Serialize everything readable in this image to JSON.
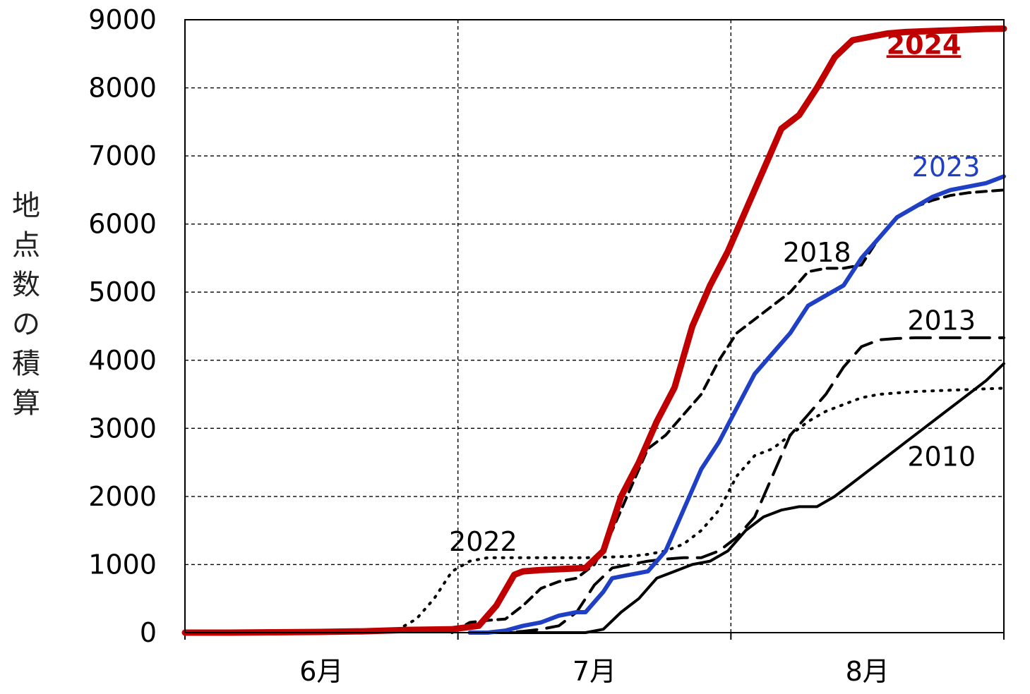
{
  "chart_data": {
    "type": "line",
    "xlabel": "",
    "ylabel": "地点数の積算",
    "ylim": [
      0,
      9000
    ],
    "yticks": [
      "0",
      "1000",
      "2000",
      "3000",
      "4000",
      "5000",
      "6000",
      "7000",
      "8000",
      "9000"
    ],
    "xlim": [
      0,
      92
    ],
    "x_categories": [
      "6月",
      "7月",
      "8月"
    ],
    "grid": true,
    "series": [
      {
        "name": "2024",
        "color": "#c00000",
        "style": "solid-thick",
        "x": [
          0,
          5,
          10,
          15,
          20,
          25,
          30,
          33,
          35,
          37,
          38,
          40,
          45,
          47,
          49,
          51,
          53,
          55,
          57,
          59,
          61,
          63,
          65,
          67,
          69,
          71,
          73,
          75,
          77,
          79,
          81,
          83,
          85,
          86,
          87,
          88,
          89,
          90,
          92
        ],
        "values": [
          0,
          0,
          5,
          10,
          20,
          40,
          50,
          100,
          400,
          850,
          900,
          920,
          950,
          1200,
          2000,
          2500,
          3100,
          3600,
          4500,
          5100,
          5600,
          6200,
          6800,
          7400,
          7600,
          8000,
          8450,
          8700,
          8750,
          8800,
          8820,
          8830,
          8840,
          8845,
          8850,
          8855,
          8860,
          8865,
          8870
        ]
      },
      {
        "name": "2023",
        "color": "#1f3fc4",
        "style": "solid",
        "x": [
          32,
          34,
          36,
          38,
          40,
          42,
          44,
          45,
          47,
          48,
          50,
          52,
          54,
          56,
          58,
          60,
          62,
          64,
          66,
          68,
          70,
          72,
          74,
          76,
          78,
          80,
          82,
          84,
          86,
          88,
          90,
          92
        ],
        "values": [
          0,
          0,
          30,
          100,
          150,
          250,
          300,
          300,
          600,
          800,
          850,
          900,
          1200,
          1800,
          2400,
          2800,
          3300,
          3800,
          4100,
          4400,
          4800,
          4950,
          5100,
          5500,
          5800,
          6100,
          6250,
          6400,
          6500,
          6550,
          6600,
          6700
        ]
      },
      {
        "name": "2018",
        "color": "#000000",
        "style": "dashed",
        "x": [
          30,
          32,
          34,
          36,
          38,
          40,
          42,
          44,
          46,
          48,
          50,
          52,
          54,
          56,
          58,
          60,
          62,
          64,
          66,
          68,
          70,
          72,
          74,
          76,
          78,
          80,
          82,
          84,
          86,
          88,
          90,
          92
        ],
        "values": [
          0,
          150,
          180,
          200,
          400,
          650,
          750,
          800,
          1000,
          1500,
          2100,
          2700,
          2900,
          3200,
          3500,
          4000,
          4400,
          4600,
          4800,
          5000,
          5300,
          5350,
          5350,
          5400,
          5800,
          6100,
          6250,
          6350,
          6420,
          6460,
          6480,
          6500
        ]
      },
      {
        "name": "2013",
        "color": "#000000",
        "style": "long-dashed",
        "x": [
          34,
          36,
          38,
          40,
          42,
          44,
          46,
          48,
          50,
          52,
          54,
          56,
          58,
          60,
          62,
          64,
          66,
          68,
          70,
          72,
          74,
          76,
          78,
          80,
          82,
          84,
          86,
          88,
          90,
          92
        ],
        "values": [
          0,
          0,
          20,
          50,
          100,
          300,
          700,
          950,
          1000,
          1050,
          1080,
          1100,
          1100,
          1200,
          1400,
          1700,
          2300,
          2900,
          3200,
          3500,
          3900,
          4200,
          4300,
          4320,
          4330,
          4330,
          4330,
          4330,
          4330,
          4330
        ]
      },
      {
        "name": "2010",
        "color": "#000000",
        "style": "solid-thin",
        "x": [
          35,
          40,
          45,
          47,
          49,
          51,
          53,
          55,
          57,
          59,
          61,
          63,
          65,
          67,
          69,
          71,
          73,
          75,
          77,
          79,
          81,
          83,
          85,
          87,
          89,
          90,
          92
        ],
        "values": [
          0,
          0,
          0,
          50,
          300,
          500,
          800,
          900,
          1000,
          1050,
          1200,
          1500,
          1700,
          1800,
          1850,
          1850,
          2000,
          2200,
          2400,
          2600,
          2800,
          3000,
          3200,
          3400,
          3600,
          3700,
          3950
        ]
      },
      {
        "name": "2022",
        "color": "#000000",
        "style": "dotted",
        "x": [
          20,
          24,
          26,
          28,
          30,
          32,
          34,
          36,
          40,
          45,
          50,
          52,
          54,
          56,
          58,
          60,
          62,
          64,
          66,
          68,
          70,
          72,
          74,
          76,
          78,
          80,
          82,
          84,
          86,
          88,
          90,
          92
        ],
        "values": [
          0,
          50,
          200,
          500,
          900,
          1050,
          1100,
          1100,
          1100,
          1100,
          1120,
          1150,
          1200,
          1300,
          1500,
          1800,
          2300,
          2600,
          2700,
          2900,
          3100,
          3250,
          3350,
          3450,
          3500,
          3520,
          3540,
          3550,
          3560,
          3570,
          3580,
          3590
        ]
      }
    ]
  }
}
